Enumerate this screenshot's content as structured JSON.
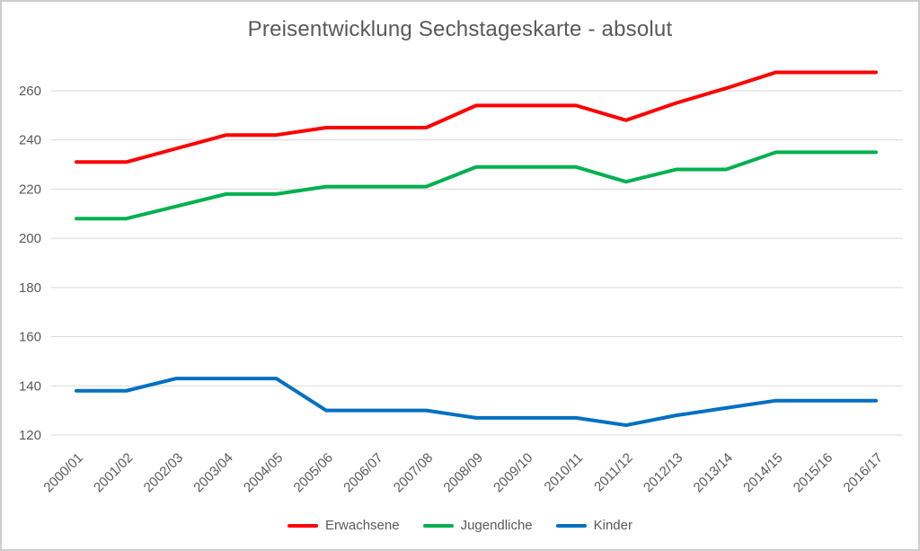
{
  "chart_data": {
    "type": "line",
    "title": "Preisentwicklung Sechstageskarte - absolut",
    "categories": [
      "2000/01",
      "2001/02",
      "2002/03",
      "2003/04",
      "2004/05",
      "2005/06",
      "2006/07",
      "2007/08",
      "2008/09",
      "2009/10",
      "2010/11",
      "2011/12",
      "2012/13",
      "2013/14",
      "2014/15",
      "2015/16",
      "2016/17"
    ],
    "series": [
      {
        "name": "Erwachsene",
        "color": "#ff0000",
        "values": [
          231,
          231,
          236.5,
          242,
          242,
          245,
          245,
          245,
          254,
          254,
          254,
          248,
          255,
          261,
          267.5,
          267.5,
          267.5
        ]
      },
      {
        "name": "Jugendliche",
        "color": "#00b050",
        "values": [
          208,
          208,
          213,
          218,
          218,
          221,
          221,
          221,
          229,
          229,
          229,
          223,
          228,
          228,
          235,
          235,
          235
        ]
      },
      {
        "name": "Kinder",
        "color": "#0070c0",
        "values": [
          138,
          138,
          143,
          143,
          143,
          130,
          130,
          130,
          127,
          127,
          127,
          124,
          128,
          131,
          134,
          134,
          134
        ]
      }
    ],
    "xlabel": "",
    "ylabel": "",
    "y_ticks": [
      120,
      140,
      160,
      180,
      200,
      220,
      240,
      260
    ],
    "ylim": [
      120,
      260
    ],
    "grid": "horizontal",
    "legend_position": "bottom",
    "x_label_rotation_deg": 45
  },
  "colors": {
    "grid_line": "#d9d9d9",
    "axis_text": "#595959",
    "title_text": "#595959",
    "frame_border": "#cdcdcd",
    "background": "#ffffff"
  }
}
